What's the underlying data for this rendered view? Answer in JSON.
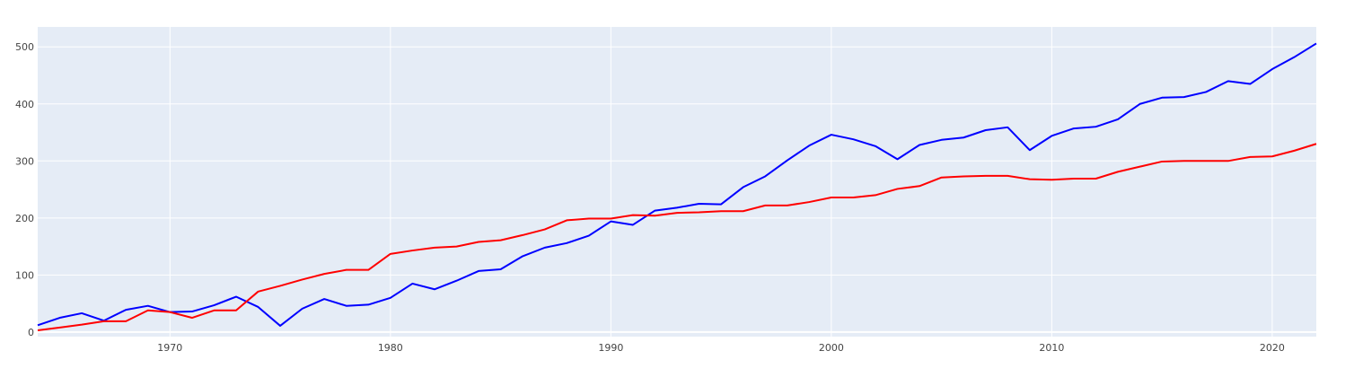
{
  "chart_data": {
    "type": "line",
    "title": "",
    "xlabel": "",
    "ylabel": "",
    "xlim": [
      1964,
      2022
    ],
    "ylim": [
      -8,
      535
    ],
    "x_ticks": [
      1970,
      1980,
      1990,
      2000,
      2010,
      2020
    ],
    "y_ticks": [
      0,
      100,
      200,
      300,
      400,
      500
    ],
    "grid": true,
    "legend": "none",
    "background": "#e5ecf6",
    "grid_color": "#ffffff",
    "x": [
      1964,
      1965,
      1966,
      1967,
      1968,
      1969,
      1970,
      1971,
      1972,
      1973,
      1974,
      1975,
      1976,
      1977,
      1978,
      1979,
      1980,
      1981,
      1982,
      1983,
      1984,
      1985,
      1986,
      1987,
      1988,
      1989,
      1990,
      1991,
      1992,
      1993,
      1994,
      1995,
      1996,
      1997,
      1998,
      1999,
      2000,
      2001,
      2002,
      2003,
      2004,
      2005,
      2006,
      2007,
      2008,
      2009,
      2010,
      2011,
      2012,
      2013,
      2014,
      2015,
      2016,
      2017,
      2018,
      2019,
      2020,
      2021,
      2022
    ],
    "series": [
      {
        "color": "#0000ff",
        "values": [
          12,
          25,
          33,
          20,
          39,
          46,
          35,
          36,
          47,
          62,
          44,
          11,
          41,
          58,
          46,
          48,
          60,
          85,
          75,
          90,
          107,
          110,
          133,
          148,
          156,
          169,
          194,
          188,
          213,
          218,
          225,
          224,
          254,
          273,
          301,
          327,
          346,
          338,
          326,
          303,
          328,
          337,
          341,
          354,
          359,
          319,
          344,
          357,
          360,
          373,
          400,
          411,
          412,
          421,
          440,
          435,
          461,
          482,
          506
        ]
      },
      {
        "color": "#ff0000",
        "values": [
          3,
          8,
          13,
          19,
          19,
          38,
          35,
          25,
          38,
          38,
          71,
          81,
          92,
          102,
          109,
          109,
          137,
          143,
          148,
          150,
          158,
          161,
          170,
          180,
          196,
          199,
          199,
          205,
          204,
          209,
          210,
          212,
          212,
          222,
          222,
          228,
          236,
          236,
          240,
          251,
          256,
          271,
          273,
          274,
          274,
          268,
          267,
          269,
          269,
          281,
          290,
          299,
          300,
          300,
          300,
          307,
          308,
          318,
          330
        ]
      }
    ]
  }
}
